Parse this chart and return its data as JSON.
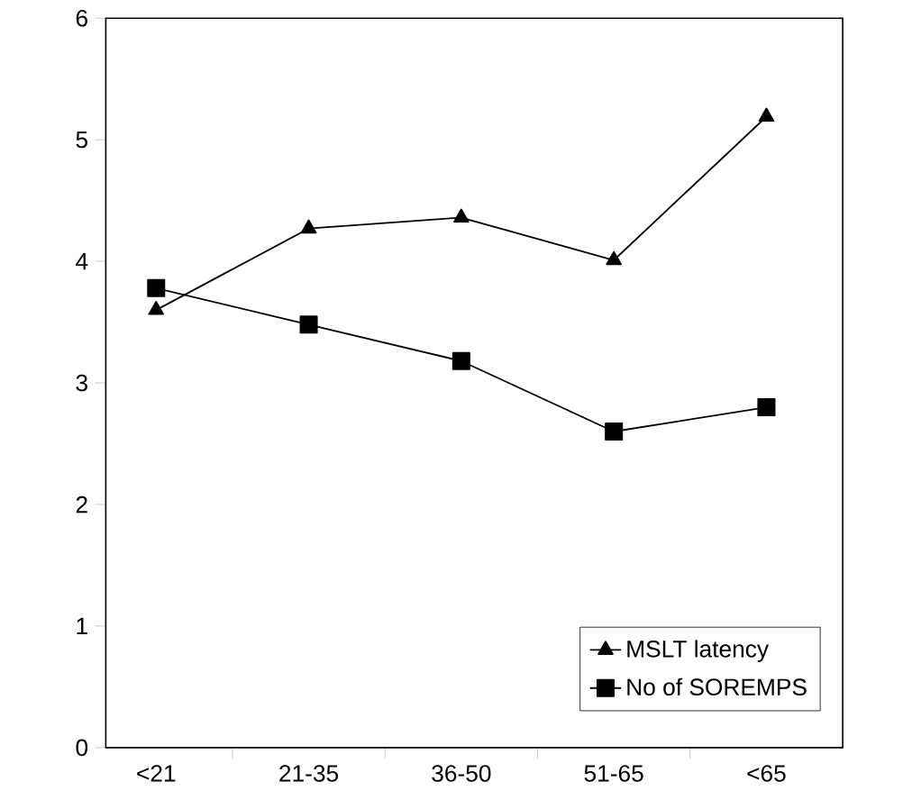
{
  "chart_data": {
    "type": "line",
    "categories": [
      "<21",
      "21-35",
      "36-50",
      "51-65",
      "<65"
    ],
    "series": [
      {
        "name": "MSLT latency",
        "color": "#000000",
        "marker": "triangle",
        "values": [
          3.6,
          4.27,
          4.36,
          4.01,
          5.19
        ]
      },
      {
        "name": "No of SOREMPS",
        "color": "#000000",
        "marker": "square",
        "values": [
          3.78,
          3.48,
          3.18,
          2.6,
          2.8
        ]
      }
    ],
    "ylim": [
      0,
      6
    ],
    "yticks": [
      0,
      1,
      2,
      3,
      4,
      5,
      6
    ],
    "grid": false,
    "legend": "bottom right",
    "line_style": "solid"
  }
}
